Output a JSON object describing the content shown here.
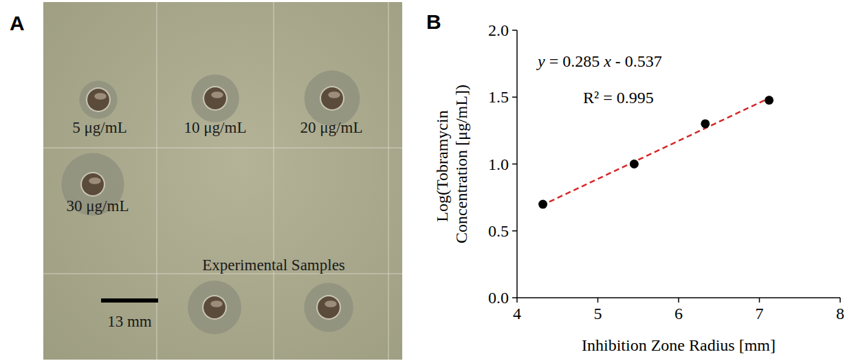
{
  "chart_data": {
    "type": "scatter",
    "panel": "B",
    "x_label": "Inhibition Zone Radius [mm]",
    "y_label": "Log(Tobramycin Concentration [μg/mL])",
    "annotations": [
      "y = 0.285 x - 0.537",
      "R² = 0.995"
    ],
    "series": [
      {
        "type": "scatter",
        "color": "#000000",
        "marker": "circle",
        "x": [
          4.32,
          5.45,
          6.33,
          7.12
        ],
        "values": [
          0.699,
          1.0,
          1.301,
          1.477
        ]
      },
      {
        "type": "line",
        "color": "#d62728",
        "line_style": "dashed",
        "x": [
          4.3,
          7.15
        ],
        "values": [
          0.689,
          1.501
        ]
      }
    ],
    "xlim": [
      4,
      8
    ],
    "xticks": [
      4,
      5,
      6,
      7,
      8
    ],
    "ylim": [
      0,
      2.0
    ],
    "yticks": [
      {
        "value": 0,
        "label": "0.0"
      },
      {
        "value": 0.5,
        "label": "0.5"
      },
      {
        "value": 1.0,
        "label": "1.0"
      },
      {
        "value": 1.5,
        "label": "1.5"
      },
      {
        "value": 2.0,
        "label": "2.0"
      }
    ],
    "grid": false
  },
  "plate": {
    "panel": "A",
    "well_radius": 2.5,
    "standards": [
      {
        "label": "5 μg/mL",
        "zone_radius": 4.32
      },
      {
        "label": "10 μg/mL",
        "zone_radius": 5.45
      },
      {
        "label": "20 μg/mL",
        "zone_radius": 6.33
      },
      {
        "label": "30 μg/mL",
        "zone_radius": 7.12
      }
    ],
    "samples_label": "Experimental Samples",
    "samples": [
      {
        "zone_radius": 6.1
      },
      {
        "zone_radius": 5.6
      }
    ],
    "scale_bar": {
      "length": 13,
      "label": "13 mm"
    }
  }
}
